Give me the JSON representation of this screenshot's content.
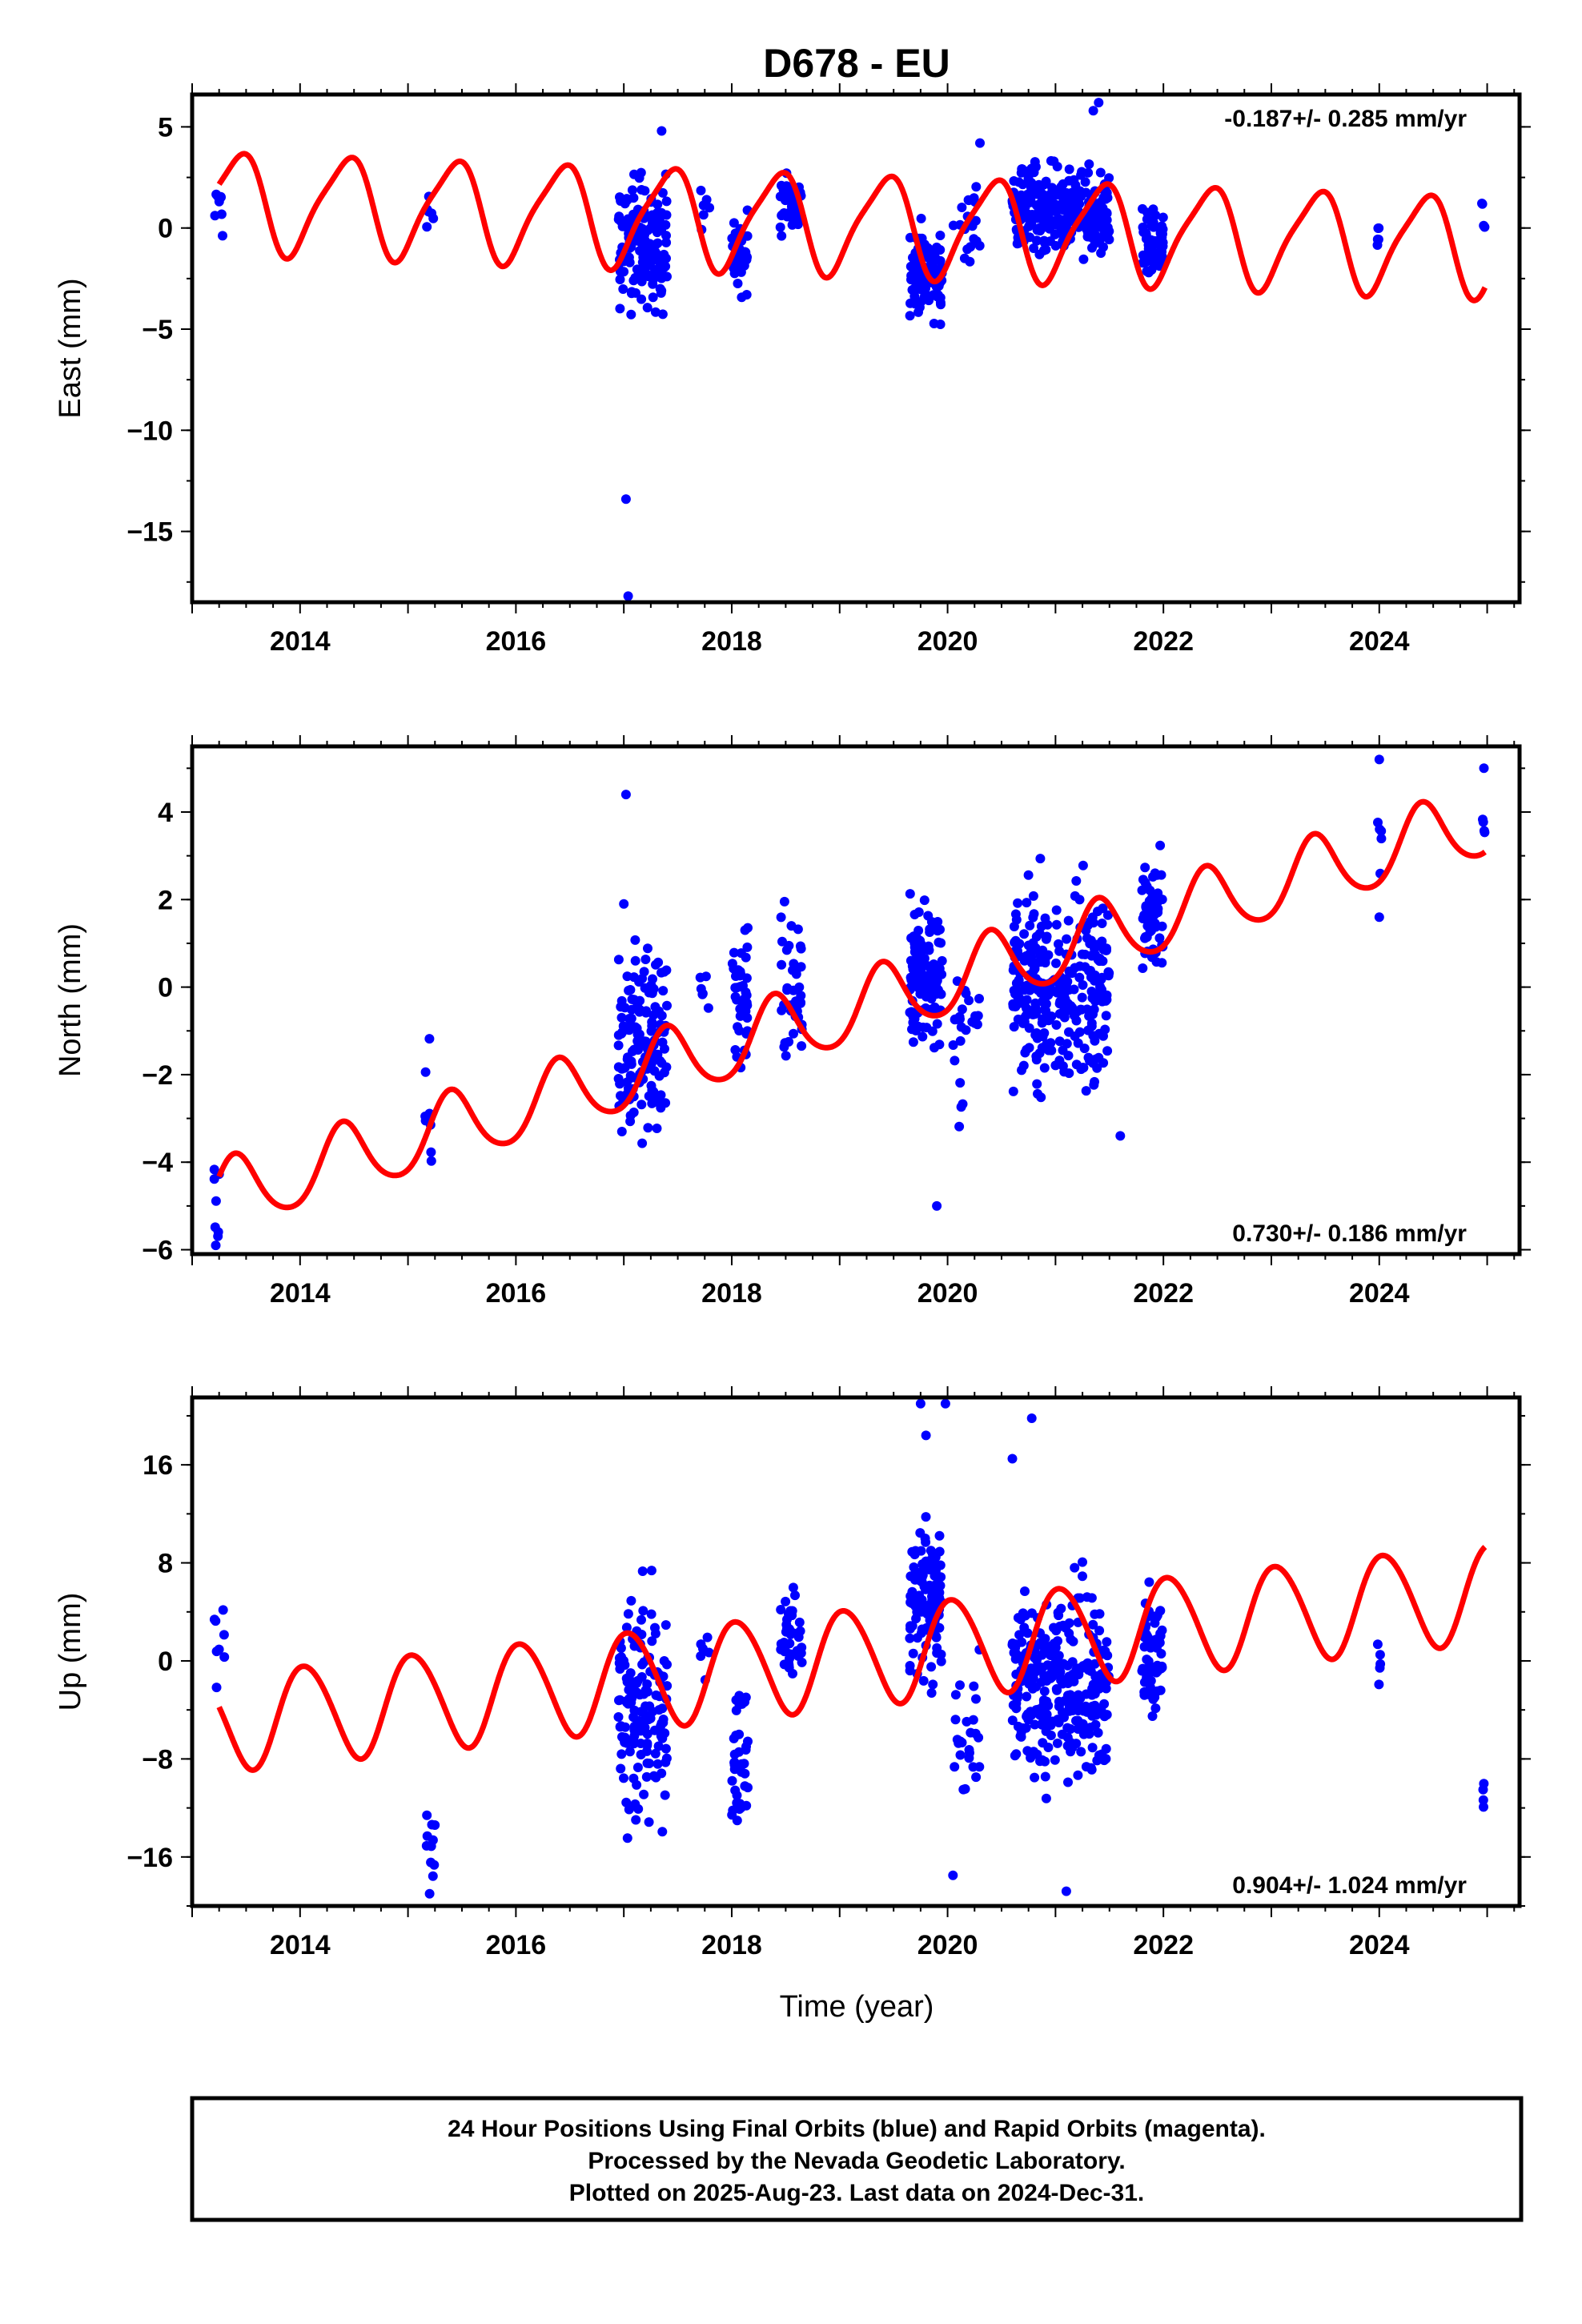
{
  "title": "D678 - EU",
  "xlabel": "Time (year)",
  "footer": {
    "line1": "24 Hour Positions Using Final Orbits (blue) and Rapid Orbits (magenta).",
    "line2": "Processed by the Nevada Geodetic Laboratory.",
    "line3": "Plotted on 2025-Aug-23. Last data on 2024-Dec-31."
  },
  "colors": {
    "points": "#0000ff",
    "model": "#ff0000",
    "frame": "#000000",
    "background": "#ffffff"
  },
  "chart_data": [
    {
      "type": "scatter",
      "ylabel": "East (mm)",
      "rate_label": "-0.187+/- 0.285 mm/yr",
      "rate_position": "top-right",
      "xlim": [
        2013.0,
        2025.3
      ],
      "ylim": [
        -18.5,
        6.6
      ],
      "x_ticks": [
        2014,
        2016,
        2018,
        2020,
        2022,
        2024
      ],
      "y_ticks": [
        5,
        0,
        -5,
        -10,
        -15
      ],
      "y_tick_labels": [
        "5",
        "0",
        "−5",
        "−10",
        "−15"
      ],
      "model": {
        "offset": 1.3,
        "slope": -0.187,
        "ref_year": 2013.25,
        "amp_annual": 2.4,
        "phase_annual": 0.08,
        "amp_semiannual": 0.5,
        "phase_semiannual": 0.3
      },
      "segments": [
        {
          "x_start": 2013.2,
          "x_end": 2013.3,
          "center": 0.8,
          "spread": 1.4,
          "count": 8
        },
        {
          "x_start": 2015.15,
          "x_end": 2015.25,
          "center": 1.0,
          "spread": 1.2,
          "count": 6
        },
        {
          "x_start": 2016.95,
          "x_end": 2017.4,
          "center": -0.8,
          "spread": 3.0,
          "count": 150
        },
        {
          "x_start": 2017.7,
          "x_end": 2017.8,
          "center": 0.8,
          "spread": 1.0,
          "count": 6
        },
        {
          "x_start": 2018.0,
          "x_end": 2018.15,
          "center": -1.2,
          "spread": 2.0,
          "count": 40
        },
        {
          "x_start": 2018.45,
          "x_end": 2018.65,
          "center": 1.2,
          "spread": 1.4,
          "count": 40
        },
        {
          "x_start": 2019.65,
          "x_end": 2019.95,
          "center": -2.2,
          "spread": 2.0,
          "count": 120
        },
        {
          "x_start": 2020.05,
          "x_end": 2020.3,
          "center": 0.5,
          "spread": 2.0,
          "count": 20
        },
        {
          "x_start": 2020.6,
          "x_end": 2021.5,
          "center": 0.8,
          "spread": 2.0,
          "count": 300
        },
        {
          "x_start": 2021.8,
          "x_end": 2022.0,
          "center": -0.8,
          "spread": 1.4,
          "count": 60
        },
        {
          "x_start": 2023.98,
          "x_end": 2024.02,
          "center": -0.5,
          "spread": 1.0,
          "count": 5
        },
        {
          "x_start": 2024.95,
          "x_end": 2024.98,
          "center": 0.5,
          "spread": 1.0,
          "count": 4
        }
      ],
      "outliers": [
        [
          2017.02,
          -13.4
        ],
        [
          2017.04,
          -18.2
        ],
        [
          2021.4,
          6.2
        ],
        [
          2021.35,
          5.8
        ],
        [
          2017.35,
          4.8
        ],
        [
          2020.3,
          4.2
        ]
      ]
    },
    {
      "type": "scatter",
      "ylabel": "North (mm)",
      "rate_label": "0.730+/- 0.186 mm/yr",
      "rate_position": "bottom-right",
      "xlim": [
        2013.0,
        2025.3
      ],
      "ylim": [
        -6.1,
        5.5
      ],
      "x_ticks": [
        2014,
        2016,
        2018,
        2020,
        2022,
        2024
      ],
      "y_ticks": [
        4,
        2,
        0,
        -2,
        -4,
        -6
      ],
      "y_tick_labels": [
        "4",
        "2",
        "0",
        "−2",
        "−4",
        "−6"
      ],
      "model": {
        "offset": -4.8,
        "slope": 0.73,
        "ref_year": 2013.25,
        "amp_annual": 0.8,
        "phase_annual": 0.1,
        "amp_semiannual": 0.1,
        "phase_semiannual": 0.0
      },
      "segments": [
        {
          "x_start": 2013.2,
          "x_end": 2013.3,
          "center": -5.0,
          "spread": 1.3,
          "count": 8
        },
        {
          "x_start": 2015.15,
          "x_end": 2015.25,
          "center": -2.5,
          "spread": 1.5,
          "count": 8
        },
        {
          "x_start": 2016.95,
          "x_end": 2017.4,
          "center": -1.2,
          "spread": 2.0,
          "count": 150
        },
        {
          "x_start": 2017.7,
          "x_end": 2017.8,
          "center": 0.0,
          "spread": 1.0,
          "count": 6
        },
        {
          "x_start": 2018.0,
          "x_end": 2018.15,
          "center": 0.0,
          "spread": 1.8,
          "count": 40
        },
        {
          "x_start": 2018.45,
          "x_end": 2018.65,
          "center": 0.0,
          "spread": 2.0,
          "count": 40
        },
        {
          "x_start": 2019.65,
          "x_end": 2019.95,
          "center": 0.3,
          "spread": 1.6,
          "count": 120
        },
        {
          "x_start": 2020.05,
          "x_end": 2020.3,
          "center": -1.2,
          "spread": 1.5,
          "count": 25
        },
        {
          "x_start": 2020.6,
          "x_end": 2021.5,
          "center": 0.0,
          "spread": 2.0,
          "count": 300
        },
        {
          "x_start": 2021.8,
          "x_end": 2022.0,
          "center": 1.5,
          "spread": 1.4,
          "count": 60
        },
        {
          "x_start": 2023.98,
          "x_end": 2024.02,
          "center": 3.2,
          "spread": 1.0,
          "count": 5
        },
        {
          "x_start": 2024.95,
          "x_end": 2024.98,
          "center": 3.6,
          "spread": 1.0,
          "count": 4
        }
      ],
      "outliers": [
        [
          2017.02,
          4.4
        ],
        [
          2017.0,
          1.9
        ],
        [
          2019.9,
          -5.0
        ],
        [
          2021.6,
          -3.4
        ],
        [
          2024.0,
          5.2
        ],
        [
          2024.97,
          5.0
        ],
        [
          2024.0,
          1.6
        ]
      ]
    },
    {
      "type": "scatter",
      "ylabel": "Up (mm)",
      "rate_label": "0.904+/- 1.024 mm/yr",
      "rate_position": "bottom-right",
      "xlim": [
        2013.0,
        2025.3
      ],
      "ylim": [
        -20.0,
        21.5
      ],
      "x_ticks": [
        2014,
        2016,
        2018,
        2020,
        2022,
        2024
      ],
      "y_ticks": [
        16,
        8,
        0,
        -8,
        -16
      ],
      "y_tick_labels": [
        "16",
        "8",
        "0",
        "−8",
        "−16"
      ],
      "model": {
        "offset": -5.0,
        "slope": 0.904,
        "ref_year": 2013.25,
        "amp_annual": 4.0,
        "phase_annual": 0.45,
        "amp_semiannual": 0.3,
        "phase_semiannual": 0.0
      },
      "segments": [
        {
          "x_start": 2013.2,
          "x_end": 2013.3,
          "center": 1.0,
          "spread": 3.5,
          "count": 8
        },
        {
          "x_start": 2015.15,
          "x_end": 2015.25,
          "center": -15.0,
          "spread": 3.0,
          "count": 10
        },
        {
          "x_start": 2016.95,
          "x_end": 2017.4,
          "center": -4.0,
          "spread": 8.0,
          "count": 150
        },
        {
          "x_start": 2017.7,
          "x_end": 2017.8,
          "center": 1.0,
          "spread": 2.5,
          "count": 6
        },
        {
          "x_start": 2018.0,
          "x_end": 2018.15,
          "center": -8.0,
          "spread": 6.0,
          "count": 40
        },
        {
          "x_start": 2018.45,
          "x_end": 2018.65,
          "center": 2.0,
          "spread": 4.0,
          "count": 40
        },
        {
          "x_start": 2019.65,
          "x_end": 2019.95,
          "center": 5.0,
          "spread": 6.0,
          "count": 120
        },
        {
          "x_start": 2020.05,
          "x_end": 2020.3,
          "center": -6.0,
          "spread": 6.0,
          "count": 25
        },
        {
          "x_start": 2020.6,
          "x_end": 2021.5,
          "center": -2.0,
          "spread": 7.0,
          "count": 300
        },
        {
          "x_start": 2021.8,
          "x_end": 2022.0,
          "center": 1.0,
          "spread": 5.0,
          "count": 60
        },
        {
          "x_start": 2023.98,
          "x_end": 2024.02,
          "center": -1.0,
          "spread": 3.5,
          "count": 5
        },
        {
          "x_start": 2024.95,
          "x_end": 2024.98,
          "center": -10.0,
          "spread": 2.0,
          "count": 4
        }
      ],
      "outliers": [
        [
          2019.75,
          21.0
        ],
        [
          2019.98,
          21.0
        ],
        [
          2020.78,
          19.8
        ],
        [
          2019.8,
          18.4
        ],
        [
          2021.1,
          -18.8
        ],
        [
          2015.2,
          -19.0
        ],
        [
          2020.05,
          -17.5
        ],
        [
          2020.6,
          16.5
        ]
      ]
    }
  ]
}
